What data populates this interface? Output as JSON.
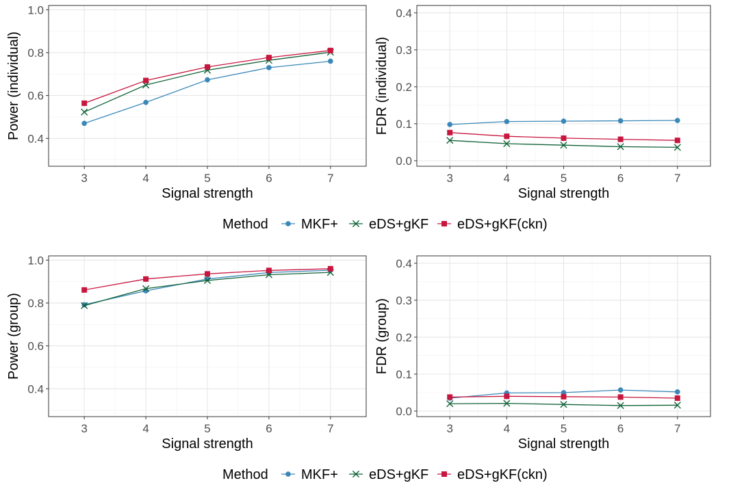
{
  "colors": {
    "MKF+": "#3a87b8",
    "eDS+gKF": "#0f6137",
    "eDS+gKF(ckn)": "#c8173f"
  },
  "legend": {
    "title": "Method",
    "entries": [
      {
        "name": "MKF+",
        "marker": "circle"
      },
      {
        "name": "eDS+gKF",
        "marker": "cross"
      },
      {
        "name": "eDS+gKF(ckn)",
        "marker": "square"
      }
    ]
  },
  "chart_data": [
    {
      "type": "line",
      "xlabel": "Signal strength",
      "ylabel": "Power (individual)",
      "xlim": [
        2.42,
        7.58
      ],
      "ylim": [
        0.27,
        1.02
      ],
      "xticks": [
        3,
        4,
        5,
        6,
        7
      ],
      "yticks": [
        0.4,
        0.6,
        0.8,
        1.0
      ],
      "ytick_labels": [
        "0.4",
        "0.6",
        "0.8",
        "1.0"
      ],
      "grid": true,
      "x": [
        3,
        4,
        5,
        6,
        7
      ],
      "series": [
        {
          "name": "MKF+",
          "values": [
            0.47,
            0.568,
            0.673,
            0.73,
            0.76
          ]
        },
        {
          "name": "eDS+gKF",
          "values": [
            0.523,
            0.649,
            0.718,
            0.764,
            0.802
          ]
        },
        {
          "name": "eDS+gKF(ckn)",
          "values": [
            0.564,
            0.67,
            0.733,
            0.777,
            0.81
          ]
        }
      ]
    },
    {
      "type": "line",
      "xlabel": "Signal strength",
      "ylabel": "FDR (individual)",
      "xlim": [
        2.42,
        7.58
      ],
      "ylim": [
        -0.015,
        0.42
      ],
      "xticks": [
        3,
        4,
        5,
        6,
        7
      ],
      "yticks": [
        0.0,
        0.1,
        0.2,
        0.3,
        0.4
      ],
      "ytick_labels": [
        "0.0",
        "0.1",
        "0.2",
        "0.3",
        "0.4"
      ],
      "grid": true,
      "x": [
        3,
        4,
        5,
        6,
        7
      ],
      "series": [
        {
          "name": "MKF+",
          "values": [
            0.098,
            0.106,
            0.107,
            0.108,
            0.109
          ]
        },
        {
          "name": "eDS+gKF",
          "values": [
            0.055,
            0.046,
            0.042,
            0.038,
            0.036
          ]
        },
        {
          "name": "eDS+gKF(ckn)",
          "values": [
            0.076,
            0.066,
            0.061,
            0.058,
            0.055
          ]
        }
      ]
    },
    {
      "type": "line",
      "xlabel": "Signal strength",
      "ylabel": "Power (group)",
      "xlim": [
        2.42,
        7.58
      ],
      "ylim": [
        0.27,
        1.02
      ],
      "xticks": [
        3,
        4,
        5,
        6,
        7
      ],
      "yticks": [
        0.4,
        0.6,
        0.8,
        1.0
      ],
      "ytick_labels": [
        "0.4",
        "0.6",
        "0.8",
        "1.0"
      ],
      "grid": true,
      "x": [
        3,
        4,
        5,
        6,
        7
      ],
      "series": [
        {
          "name": "MKF+",
          "values": [
            0.792,
            0.857,
            0.912,
            0.942,
            0.953
          ]
        },
        {
          "name": "eDS+gKF",
          "values": [
            0.788,
            0.867,
            0.905,
            0.932,
            0.943
          ]
        },
        {
          "name": "eDS+gKF(ckn)",
          "values": [
            0.861,
            0.912,
            0.936,
            0.952,
            0.96
          ]
        }
      ]
    },
    {
      "type": "line",
      "xlabel": "Signal strength",
      "ylabel": "FDR (group)",
      "xlim": [
        2.42,
        7.58
      ],
      "ylim": [
        -0.015,
        0.42
      ],
      "xticks": [
        3,
        4,
        5,
        6,
        7
      ],
      "yticks": [
        0.0,
        0.1,
        0.2,
        0.3,
        0.4
      ],
      "ytick_labels": [
        "0.0",
        "0.1",
        "0.2",
        "0.3",
        "0.4"
      ],
      "grid": true,
      "x": [
        3,
        4,
        5,
        6,
        7
      ],
      "series": [
        {
          "name": "MKF+",
          "values": [
            0.035,
            0.049,
            0.05,
            0.057,
            0.052
          ]
        },
        {
          "name": "eDS+gKF",
          "values": [
            0.02,
            0.021,
            0.018,
            0.015,
            0.016
          ]
        },
        {
          "name": "eDS+gKF(ckn)",
          "values": [
            0.038,
            0.04,
            0.039,
            0.038,
            0.035
          ]
        }
      ]
    }
  ]
}
